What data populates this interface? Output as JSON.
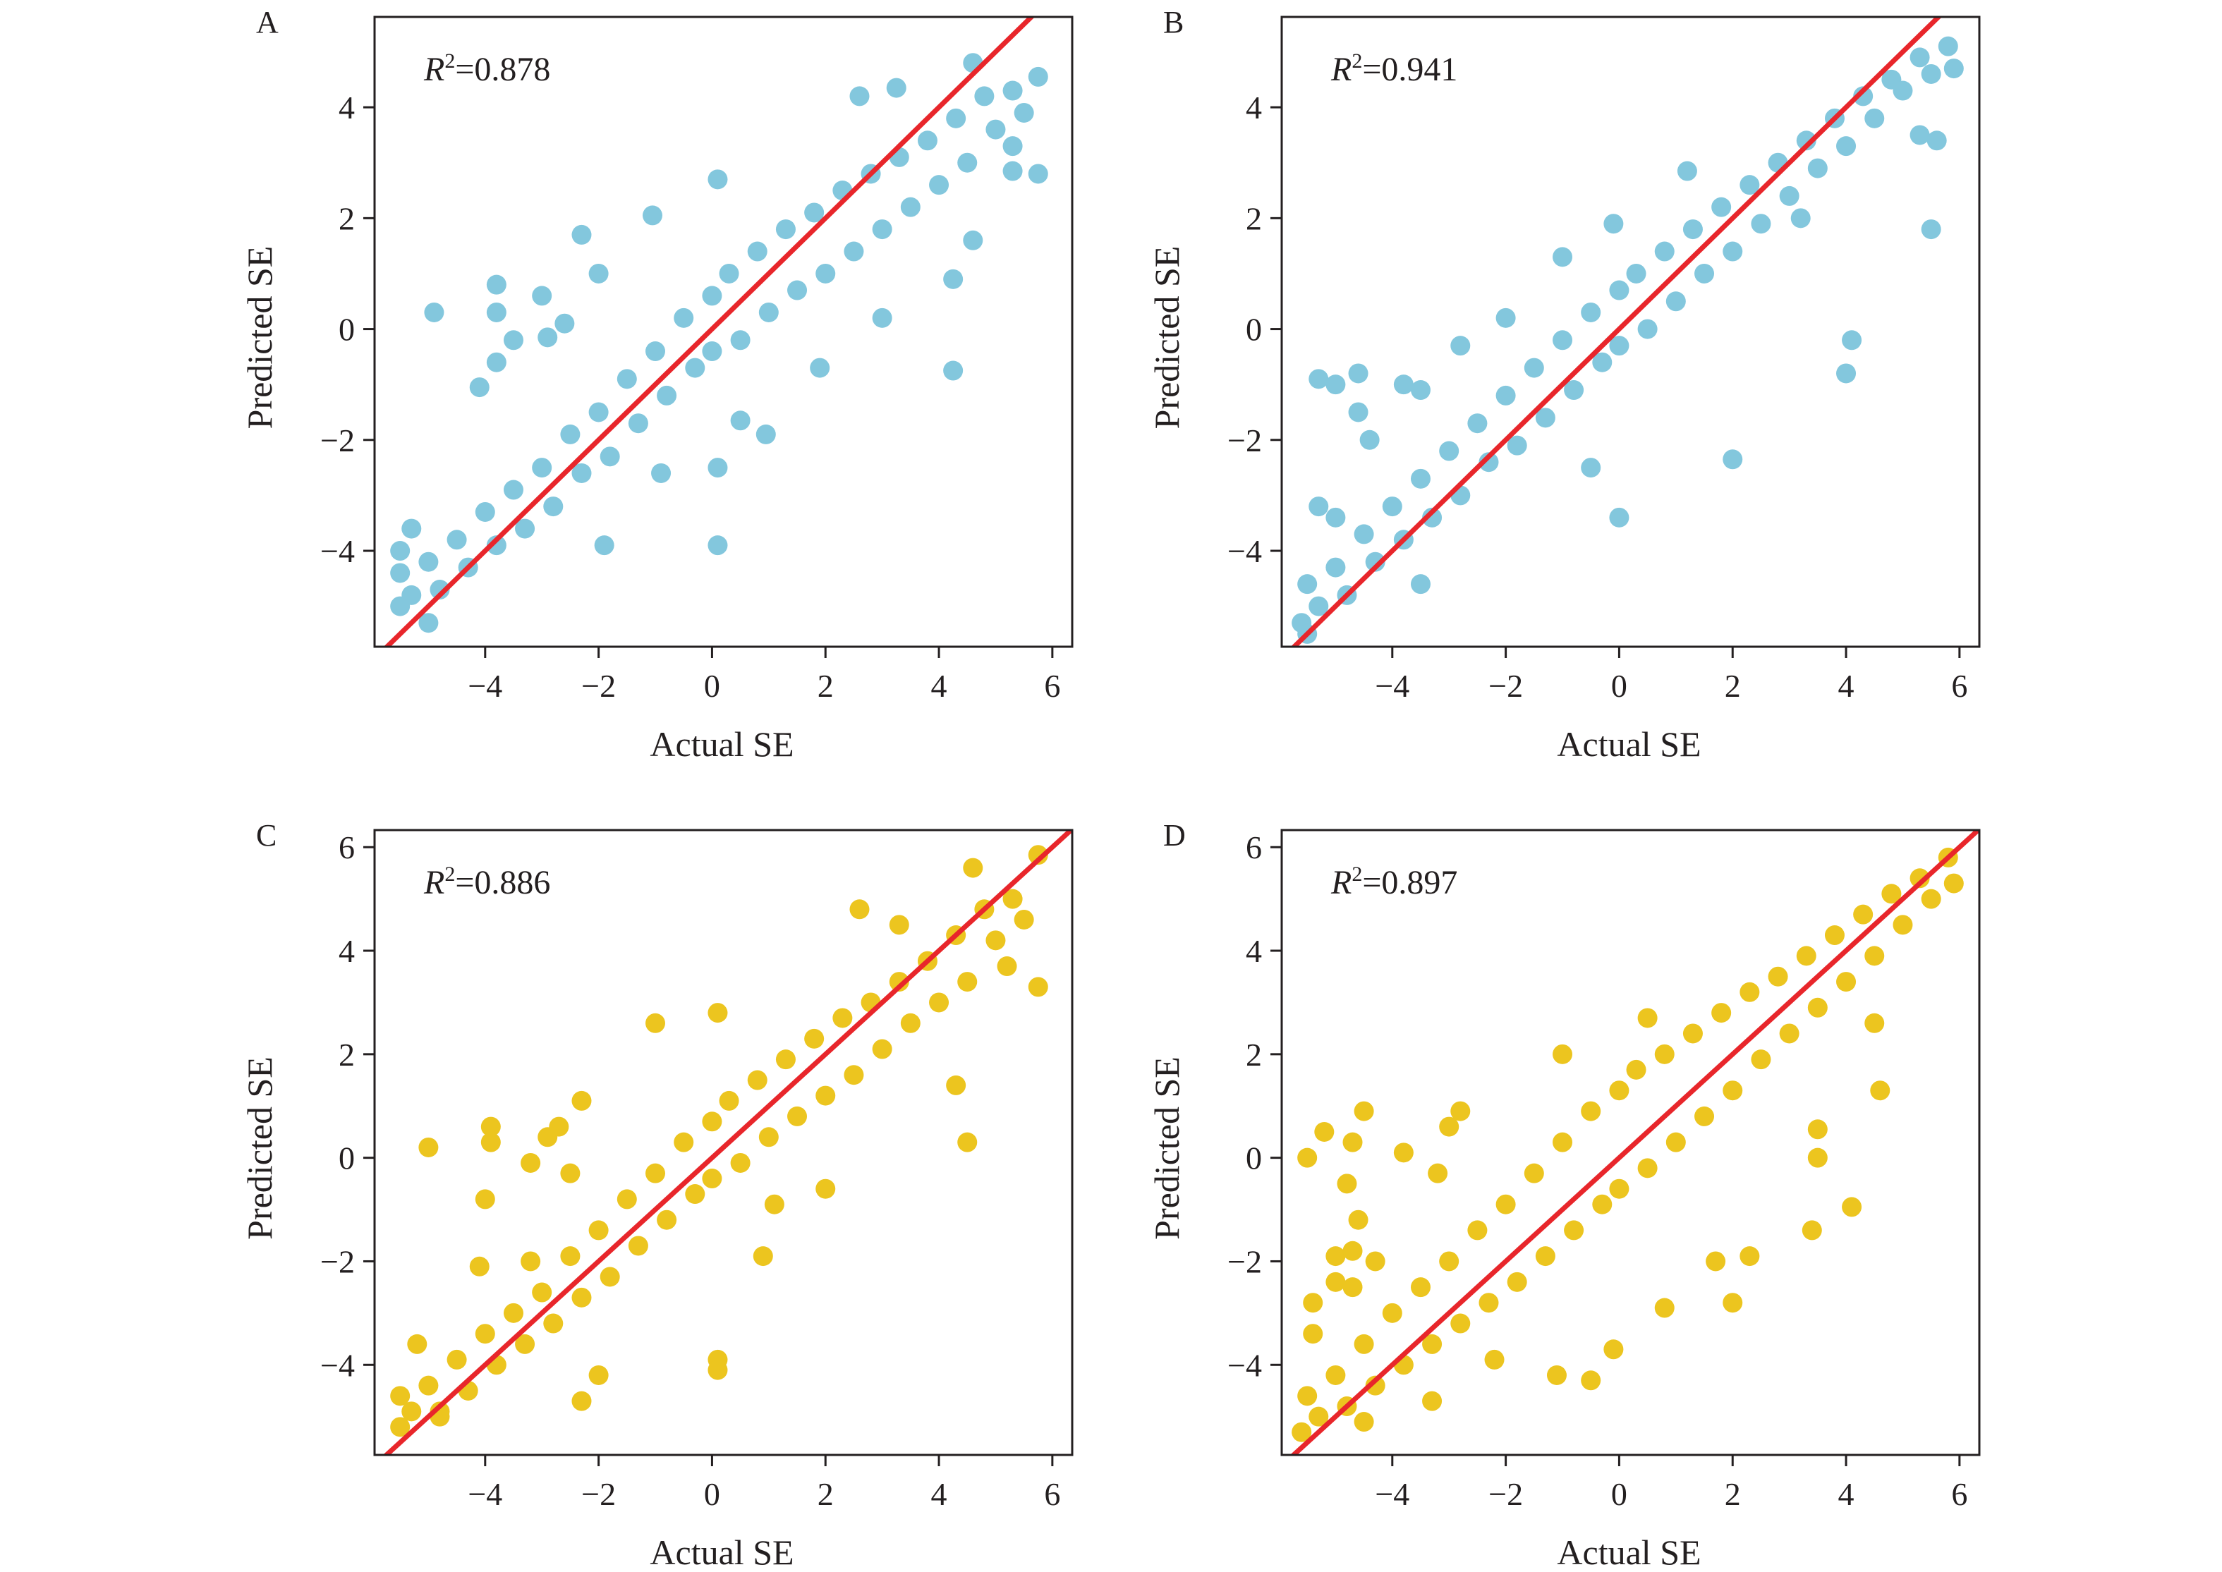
{
  "colors": {
    "blue": "#83c7dd",
    "yellow": "#ecc51f",
    "fit_line": "#e8262b",
    "axis": "#231f20"
  },
  "chart_data": [
    {
      "panel": "A",
      "type": "scatter",
      "r2": "0.878",
      "color": "#83c7dd",
      "xlabel": "Actual SE",
      "ylabel": "Predicted SE",
      "xlim": [
        -5.95,
        6.35
      ],
      "ylim": [
        -5.73,
        5.63
      ],
      "xticks": [
        -4,
        -2,
        0,
        2,
        4,
        6
      ],
      "yticks": [
        -4,
        -2,
        0,
        2,
        4
      ],
      "reference_line": "y = x",
      "grid": false,
      "points": [
        [
          -5.5,
          -5.0
        ],
        [
          -5.5,
          -4.4
        ],
        [
          -5.3,
          -4.8
        ],
        [
          -5.0,
          -4.2
        ],
        [
          -4.8,
          -4.7
        ],
        [
          -4.5,
          -3.8
        ],
        [
          -4.3,
          -4.3
        ],
        [
          -4,
          -3.3
        ],
        [
          -3.8,
          -3.9
        ],
        [
          -3.5,
          -2.9
        ],
        [
          -3.3,
          -3.6
        ],
        [
          -3,
          -2.5
        ],
        [
          -2.8,
          -3.2
        ],
        [
          -2.5,
          -1.9
        ],
        [
          -2.3,
          -2.6
        ],
        [
          -2,
          -1.5
        ],
        [
          -1.8,
          -2.3
        ],
        [
          -1.5,
          -0.9
        ],
        [
          -1.3,
          -1.7
        ],
        [
          -1,
          -0.4
        ],
        [
          -0.8,
          -1.2
        ],
        [
          -0.5,
          0.2
        ],
        [
          -0.3,
          -0.7
        ],
        [
          0,
          0.6
        ],
        [
          0,
          -0.4
        ],
        [
          0.3,
          1.0
        ],
        [
          0.5,
          -0.2
        ],
        [
          0.8,
          1.4
        ],
        [
          1,
          0.3
        ],
        [
          1.3,
          1.8
        ],
        [
          1.5,
          0.7
        ],
        [
          1.8,
          2.1
        ],
        [
          2,
          1.0
        ],
        [
          2.3,
          2.5
        ],
        [
          2.5,
          1.4
        ],
        [
          2.8,
          2.8
        ],
        [
          3,
          1.8
        ],
        [
          3.3,
          3.1
        ],
        [
          3.5,
          2.2
        ],
        [
          3.8,
          3.4
        ],
        [
          4,
          2.6
        ],
        [
          4.3,
          3.8
        ],
        [
          4.5,
          3.0
        ],
        [
          4.8,
          4.2
        ],
        [
          5,
          3.6
        ],
        [
          5.3,
          4.3
        ],
        [
          5.5,
          3.9
        ],
        [
          -4.9,
          0.3
        ],
        [
          -3.8,
          0.8
        ],
        [
          -3.8,
          0.3
        ],
        [
          -3.8,
          -0.6
        ],
        [
          -4.1,
          -1.05
        ],
        [
          -3.5,
          -0.2
        ],
        [
          -3.0,
          0.6
        ],
        [
          -2.9,
          -0.15
        ],
        [
          -2.6,
          0.1
        ],
        [
          -2.3,
          1.7
        ],
        [
          -2.0,
          1.0
        ],
        [
          -1.05,
          2.05
        ],
        [
          0.1,
          2.7
        ],
        [
          -1.9,
          -3.9
        ],
        [
          0.1,
          -3.9
        ],
        [
          0.1,
          -2.5
        ],
        [
          -0.9,
          -2.6
        ],
        [
          0.95,
          -1.9
        ],
        [
          0.5,
          -1.65
        ],
        [
          1.9,
          -0.7
        ],
        [
          4.25,
          -0.75
        ],
        [
          3.25,
          4.35
        ],
        [
          2.6,
          4.2
        ],
        [
          4.6,
          4.8
        ],
        [
          5.75,
          4.55
        ],
        [
          5.75,
          2.8
        ],
        [
          5.3,
          2.85
        ],
        [
          5.3,
          3.3
        ],
        [
          4.25,
          0.9
        ],
        [
          4.6,
          1.6
        ],
        [
          3.0,
          0.2
        ],
        [
          -5.0,
          -5.3
        ],
        [
          -5.5,
          -4.0
        ],
        [
          -5.3,
          -3.6
        ]
      ]
    },
    {
      "panel": "B",
      "type": "scatter",
      "r2": "0.941",
      "color": "#83c7dd",
      "xlabel": "Actual SE",
      "ylabel": "Predicted SE",
      "xlim": [
        -5.95,
        6.35
      ],
      "ylim": [
        -5.73,
        5.63
      ],
      "xticks": [
        -4,
        -2,
        0,
        2,
        4,
        6
      ],
      "yticks": [
        -4,
        -2,
        0,
        2,
        4
      ],
      "reference_line": "y = x",
      "grid": false,
      "points": [
        [
          -5.6,
          -5.3
        ],
        [
          -5.5,
          -4.6
        ],
        [
          -5.3,
          -5.0
        ],
        [
          -5.0,
          -4.3
        ],
        [
          -4.8,
          -4.8
        ],
        [
          -4.5,
          -3.7
        ],
        [
          -4.3,
          -4.2
        ],
        [
          -4,
          -3.2
        ],
        [
          -3.8,
          -3.8
        ],
        [
          -3.5,
          -2.7
        ],
        [
          -3.3,
          -3.4
        ],
        [
          -3,
          -2.2
        ],
        [
          -2.8,
          -3.0
        ],
        [
          -2.5,
          -1.7
        ],
        [
          -2.3,
          -2.4
        ],
        [
          -2,
          -1.2
        ],
        [
          -1.8,
          -2.1
        ],
        [
          -1.5,
          -0.7
        ],
        [
          -1.3,
          -1.6
        ],
        [
          -1,
          -0.2
        ],
        [
          -0.8,
          -1.1
        ],
        [
          -0.5,
          0.3
        ],
        [
          -0.3,
          -0.6
        ],
        [
          0,
          0.7
        ],
        [
          0,
          -0.3
        ],
        [
          0.3,
          1.0
        ],
        [
          0.5,
          0.0
        ],
        [
          0.8,
          1.4
        ],
        [
          1,
          0.5
        ],
        [
          1.3,
          1.8
        ],
        [
          1.5,
          1.0
        ],
        [
          1.8,
          2.2
        ],
        [
          2,
          1.4
        ],
        [
          2.3,
          2.6
        ],
        [
          2.5,
          1.9
        ],
        [
          2.8,
          3.0
        ],
        [
          3,
          2.4
        ],
        [
          3.3,
          3.4
        ],
        [
          3.5,
          2.9
        ],
        [
          3.8,
          3.8
        ],
        [
          4,
          3.3
        ],
        [
          4.3,
          4.2
        ],
        [
          4.5,
          3.8
        ],
        [
          4.8,
          4.5
        ],
        [
          5,
          4.3
        ],
        [
          5.3,
          4.9
        ],
        [
          5.5,
          4.6
        ],
        [
          5.8,
          5.1
        ],
        [
          5.9,
          4.7
        ],
        [
          -5.3,
          -0.9
        ],
        [
          -5.0,
          -1.0
        ],
        [
          -4.6,
          -0.8
        ],
        [
          -3.8,
          -1.0
        ],
        [
          -3.5,
          -1.1
        ],
        [
          -2.8,
          -0.3
        ],
        [
          -2.0,
          0.2
        ],
        [
          -1.0,
          1.3
        ],
        [
          -0.1,
          1.9
        ],
        [
          1.2,
          2.85
        ],
        [
          -4.6,
          -1.5
        ],
        [
          -4.4,
          -2.0
        ],
        [
          -5.3,
          -3.2
        ],
        [
          -5.0,
          -3.4
        ],
        [
          0,
          -3.4
        ],
        [
          -0.5,
          -2.5
        ],
        [
          2.0,
          -2.35
        ],
        [
          4.1,
          -0.2
        ],
        [
          4.0,
          -0.8
        ],
        [
          5.5,
          1.8
        ],
        [
          5.6,
          3.4
        ],
        [
          5.3,
          3.5
        ],
        [
          3.2,
          2.0
        ],
        [
          -3.5,
          -4.6
        ],
        [
          -5.5,
          -5.5
        ]
      ]
    },
    {
      "panel": "C",
      "type": "scatter",
      "r2": "0.886",
      "color": "#ecc51f",
      "xlabel": "Actual SE",
      "ylabel": "Predicted SE",
      "xlim": [
        -5.95,
        6.35
      ],
      "ylim": [
        -5.74,
        6.33
      ],
      "xticks": [
        -4,
        -2,
        0,
        2,
        4,
        6
      ],
      "yticks": [
        -4,
        -2,
        0,
        2,
        4,
        6
      ],
      "reference_line": "y = x",
      "grid": false,
      "points": [
        [
          -5.5,
          -5.2
        ],
        [
          -5.5,
          -4.6
        ],
        [
          -5.3,
          -4.9
        ],
        [
          -5.0,
          -4.4
        ],
        [
          -4.8,
          -4.9
        ],
        [
          -4.5,
          -3.9
        ],
        [
          -4.3,
          -4.5
        ],
        [
          -4,
          -3.4
        ],
        [
          -3.8,
          -4.0
        ],
        [
          -3.5,
          -3.0
        ],
        [
          -3.3,
          -3.6
        ],
        [
          -3,
          -2.6
        ],
        [
          -2.8,
          -3.2
        ],
        [
          -2.5,
          -1.9
        ],
        [
          -2.3,
          -2.7
        ],
        [
          -2,
          -1.4
        ],
        [
          -1.8,
          -2.3
        ],
        [
          -1.5,
          -0.8
        ],
        [
          -1.3,
          -1.7
        ],
        [
          -1,
          -0.3
        ],
        [
          -0.8,
          -1.2
        ],
        [
          -0.5,
          0.3
        ],
        [
          -0.3,
          -0.7
        ],
        [
          0,
          0.7
        ],
        [
          0,
          -0.4
        ],
        [
          0.3,
          1.1
        ],
        [
          0.5,
          -0.1
        ],
        [
          0.8,
          1.5
        ],
        [
          1,
          0.4
        ],
        [
          1.3,
          1.9
        ],
        [
          1.5,
          0.8
        ],
        [
          1.8,
          2.3
        ],
        [
          2,
          1.2
        ],
        [
          2.3,
          2.7
        ],
        [
          2.5,
          1.6
        ],
        [
          2.8,
          3.0
        ],
        [
          3,
          2.1
        ],
        [
          3.3,
          3.4
        ],
        [
          3.5,
          2.6
        ],
        [
          3.8,
          3.8
        ],
        [
          4,
          3.0
        ],
        [
          4.3,
          4.3
        ],
        [
          4.5,
          3.4
        ],
        [
          4.8,
          4.8
        ],
        [
          5,
          4.2
        ],
        [
          5.3,
          5.0
        ],
        [
          5.5,
          4.6
        ],
        [
          -5.0,
          0.2
        ],
        [
          -3.9,
          0.6
        ],
        [
          -3.9,
          0.3
        ],
        [
          -3.2,
          -0.1
        ],
        [
          -2.9,
          0.4
        ],
        [
          -2.7,
          0.6
        ],
        [
          -2.5,
          -0.3
        ],
        [
          -1.0,
          2.6
        ],
        [
          -2.3,
          1.1
        ],
        [
          0.1,
          2.8
        ],
        [
          -4.0,
          -0.8
        ],
        [
          -4.1,
          -2.1
        ],
        [
          -3.2,
          -2.0
        ],
        [
          -2.0,
          -4.2
        ],
        [
          0.1,
          -3.9
        ],
        [
          0.1,
          -4.1
        ],
        [
          1.1,
          -0.9
        ],
        [
          0.9,
          -1.9
        ],
        [
          2.0,
          -0.6
        ],
        [
          4.5,
          0.3
        ],
        [
          4.3,
          1.4
        ],
        [
          5.2,
          3.7
        ],
        [
          5.75,
          3.3
        ],
        [
          5.75,
          5.85
        ],
        [
          4.6,
          5.6
        ],
        [
          2.6,
          4.8
        ],
        [
          3.3,
          4.5
        ],
        [
          -5.2,
          -3.6
        ],
        [
          -4.8,
          -5.0
        ],
        [
          -2.3,
          -4.7
        ]
      ]
    },
    {
      "panel": "D",
      "type": "scatter",
      "r2": "0.897",
      "color": "#ecc51f",
      "xlabel": "Actual SE",
      "ylabel": "Predicted SE",
      "xlim": [
        -5.95,
        6.35
      ],
      "ylim": [
        -5.74,
        6.33
      ],
      "xticks": [
        -4,
        -2,
        0,
        2,
        4,
        6
      ],
      "yticks": [
        -4,
        -2,
        0,
        2,
        4,
        6
      ],
      "reference_line": "y = x",
      "grid": false,
      "points": [
        [
          -5.6,
          -5.3
        ],
        [
          -5.5,
          -4.6
        ],
        [
          -5.3,
          -5.0
        ],
        [
          -5.0,
          -4.2
        ],
        [
          -4.8,
          -4.8
        ],
        [
          -4.5,
          -3.6
        ],
        [
          -4.3,
          -4.4
        ],
        [
          -4,
          -3.0
        ],
        [
          -3.8,
          -4.0
        ],
        [
          -3.5,
          -2.5
        ],
        [
          -3.3,
          -3.6
        ],
        [
          -3,
          -2.0
        ],
        [
          -2.8,
          -3.2
        ],
        [
          -2.5,
          -1.4
        ],
        [
          -2.3,
          -2.8
        ],
        [
          -2,
          -0.9
        ],
        [
          -1.8,
          -2.4
        ],
        [
          -1.5,
          -0.3
        ],
        [
          -1.3,
          -1.9
        ],
        [
          -1,
          0.3
        ],
        [
          -0.8,
          -1.4
        ],
        [
          -0.5,
          0.9
        ],
        [
          -0.3,
          -0.9
        ],
        [
          0,
          1.3
        ],
        [
          0,
          -0.6
        ],
        [
          0.3,
          1.7
        ],
        [
          0.5,
          -0.2
        ],
        [
          0.8,
          2.0
        ],
        [
          1,
          0.3
        ],
        [
          1.3,
          2.4
        ],
        [
          1.5,
          0.8
        ],
        [
          1.8,
          2.8
        ],
        [
          2,
          1.3
        ],
        [
          2.3,
          3.2
        ],
        [
          2.5,
          1.9
        ],
        [
          2.8,
          3.5
        ],
        [
          3,
          2.4
        ],
        [
          3.3,
          3.9
        ],
        [
          3.5,
          2.9
        ],
        [
          3.8,
          4.3
        ],
        [
          4,
          3.4
        ],
        [
          4.3,
          4.7
        ],
        [
          4.5,
          3.9
        ],
        [
          4.8,
          5.1
        ],
        [
          5,
          4.5
        ],
        [
          5.3,
          5.4
        ],
        [
          5.5,
          5.0
        ],
        [
          5.8,
          5.8
        ],
        [
          5.9,
          5.3
        ],
        [
          -5.2,
          0.5
        ],
        [
          -5.5,
          0.0
        ],
        [
          -4.5,
          0.9
        ],
        [
          -4.7,
          0.3
        ],
        [
          -4.8,
          -0.5
        ],
        [
          -4.6,
          -1.2
        ],
        [
          -5.0,
          -1.9
        ],
        [
          -4.7,
          -1.8
        ],
        [
          -5.0,
          -2.4
        ],
        [
          -4.7,
          -2.5
        ],
        [
          -4.3,
          -2.0
        ],
        [
          -5.4,
          -2.8
        ],
        [
          -5.4,
          -3.4
        ],
        [
          -3.8,
          0.1
        ],
        [
          -3.2,
          -0.3
        ],
        [
          -2.8,
          0.9
        ],
        [
          -3.0,
          0.6
        ],
        [
          -1.0,
          2.0
        ],
        [
          0.5,
          2.7
        ],
        [
          -2.2,
          -3.9
        ],
        [
          -1.1,
          -4.2
        ],
        [
          -0.5,
          -4.3
        ],
        [
          -0.1,
          -3.7
        ],
        [
          0.8,
          -2.9
        ],
        [
          2.0,
          -2.8
        ],
        [
          1.7,
          -2.0
        ],
        [
          2.3,
          -1.9
        ],
        [
          3.4,
          -1.4
        ],
        [
          4.1,
          -0.95
        ],
        [
          3.5,
          0.0
        ],
        [
          3.5,
          0.55
        ],
        [
          4.6,
          1.3
        ],
        [
          4.5,
          2.6
        ],
        [
          -3.3,
          -4.7
        ],
        [
          -4.5,
          -5.1
        ]
      ]
    }
  ]
}
